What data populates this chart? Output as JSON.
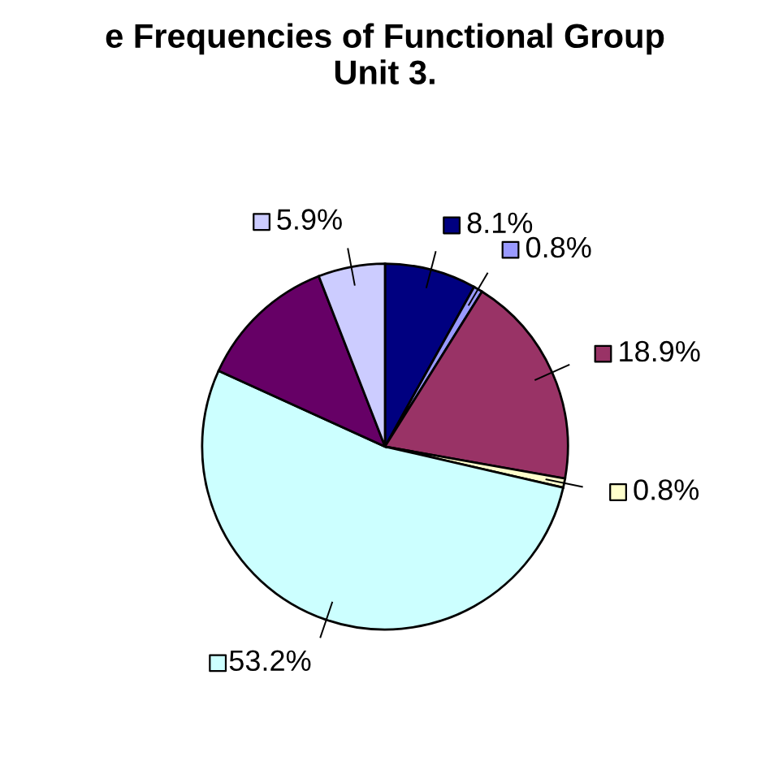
{
  "chart_data": {
    "type": "pie",
    "title": "e Frequencies of Functional Group\nUnit 3.",
    "categories": [
      null,
      null,
      null,
      null,
      null,
      null,
      null
    ],
    "values": [
      8.1,
      0.8,
      18.9,
      0.8,
      53.2,
      12.3,
      5.9
    ],
    "value_labels": [
      "8.1%",
      "0.8%",
      "18.9%",
      "0.8%",
      "53.2%",
      null,
      "5.9%"
    ],
    "colors": [
      "#000080",
      "#9999ff",
      "#993366",
      "#ffffcc",
      "#ccffff",
      "#660066",
      "#ccccff"
    ],
    "legend": false
  }
}
